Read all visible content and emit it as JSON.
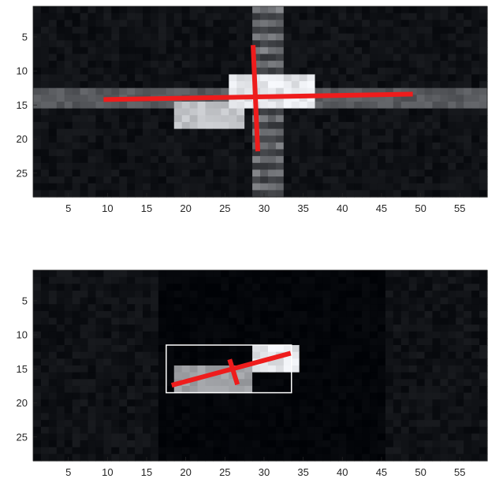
{
  "chart_data": [
    {
      "type": "heatmap",
      "title": "",
      "xlabel": "",
      "ylabel": "",
      "xlim": [
        0.5,
        58.5
      ],
      "ylim": [
        28.5,
        0.5
      ],
      "y_reversed": true,
      "colormap": "gray",
      "x_ticks": [
        5,
        10,
        15,
        20,
        25,
        30,
        35,
        40,
        45,
        50,
        55
      ],
      "y_ticks": [
        5,
        10,
        15,
        20,
        25
      ],
      "bright_regions": [
        {
          "shape": "horizontal_band",
          "rows": [
            13,
            15
          ],
          "cols": [
            1,
            58
          ],
          "intensity": 0.42
        },
        {
          "shape": "vertical_band",
          "rows": [
            1,
            28
          ],
          "cols": [
            29,
            32
          ],
          "intensity": 0.55
        },
        {
          "shape": "blob",
          "rows": [
            11,
            15
          ],
          "cols": [
            26,
            36
          ],
          "intensity": 1.0
        },
        {
          "shape": "blob",
          "rows": [
            15,
            18
          ],
          "cols": [
            19,
            27
          ],
          "intensity": 0.85
        }
      ],
      "red_lines": [
        {
          "name": "major-axis",
          "x": [
            9.5,
            49
          ],
          "y": [
            14.2,
            13.4
          ]
        },
        {
          "name": "minor-axis",
          "x": [
            28.6,
            29.2
          ],
          "y": [
            6.2,
            21.8
          ]
        }
      ],
      "colors": {
        "line": "#ee1c1c",
        "axes": "#262626"
      }
    },
    {
      "type": "heatmap",
      "title": "",
      "xlabel": "",
      "ylabel": "",
      "xlim": [
        0.5,
        58.5
      ],
      "ylim": [
        28.5,
        0.5
      ],
      "y_reversed": true,
      "colormap": "gray",
      "x_ticks": [
        5,
        10,
        15,
        20,
        25,
        30,
        35,
        40,
        45,
        50,
        55
      ],
      "y_ticks": [
        5,
        10,
        15,
        20,
        25
      ],
      "bright_regions": [
        {
          "shape": "blob",
          "rows": [
            12,
            15
          ],
          "cols": [
            29,
            34
          ],
          "intensity": 1.0
        },
        {
          "shape": "blob",
          "rows": [
            15,
            18
          ],
          "cols": [
            19,
            28
          ],
          "intensity": 0.7
        }
      ],
      "bounding_box": {
        "x": [
          17.5,
          33.5
        ],
        "y": [
          11.5,
          18.5
        ]
      },
      "red_lines": [
        {
          "name": "major-axis",
          "x": [
            18.2,
            33.4
          ],
          "y": [
            17.4,
            12.7
          ]
        },
        {
          "name": "minor-axis",
          "x": [
            25.6,
            26.6
          ],
          "y": [
            13.6,
            17.3
          ]
        }
      ],
      "colors": {
        "line": "#ee1c1c",
        "box": "#ffffff",
        "axes": "#262626"
      }
    }
  ]
}
